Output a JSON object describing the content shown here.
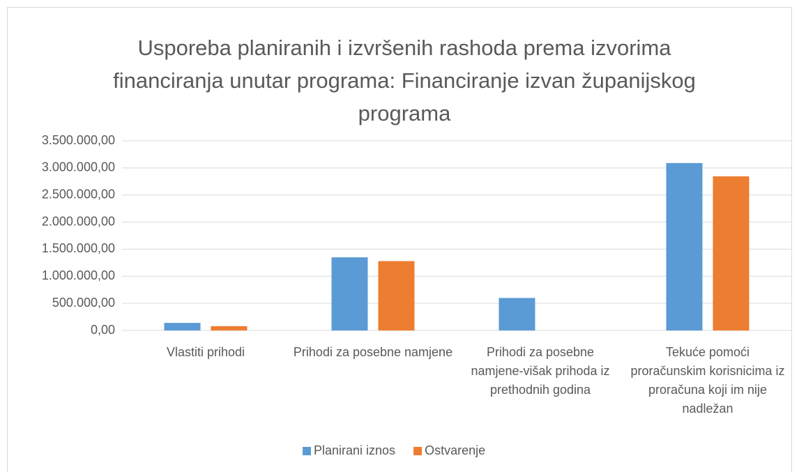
{
  "chart_data": {
    "type": "bar",
    "title": "Usporeba planiranih i izvršenih rashoda prema izvorima financiranja unutar programa: Financiranje izvan županijskog programa",
    "categories": [
      "Vlastiti prihodi",
      "Prihodi za posebne namjene",
      "Prihodi za posebne namjene-višak prihoda iz prethodnih godina",
      "Tekuće pomoći proračunskim korisnicima iz proračuna koji im nije nadležan"
    ],
    "series": [
      {
        "name": "Planirani iznos",
        "color": "#5b9bd5",
        "values": [
          140000,
          1350000,
          600000,
          3090000
        ]
      },
      {
        "name": "Ostvarenje",
        "color": "#ed7d31",
        "values": [
          80000,
          1280000,
          0,
          2845000
        ]
      }
    ],
    "ylim": [
      0,
      3500000
    ],
    "yticks": [
      {
        "value": 0,
        "label": "0,00"
      },
      {
        "value": 500000,
        "label": "500.000,00"
      },
      {
        "value": 1000000,
        "label": "1.000.000,00"
      },
      {
        "value": 1500000,
        "label": "1.500.000,00"
      },
      {
        "value": 2000000,
        "label": "2.000.000,00"
      },
      {
        "value": 2500000,
        "label": "2.500.000,00"
      },
      {
        "value": 3000000,
        "label": "3.000.000,00"
      },
      {
        "value": 3500000,
        "label": "3.500.000,00"
      }
    ],
    "grid": true,
    "legend": "bottom"
  }
}
